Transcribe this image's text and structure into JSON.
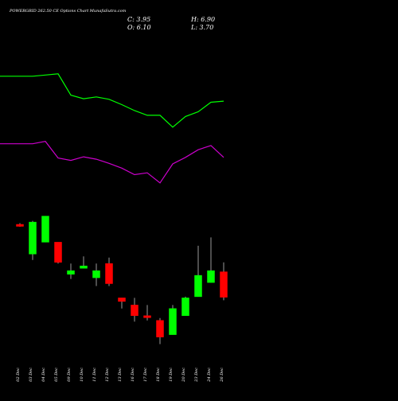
{
  "chart_data": {
    "type": "candlestick",
    "title": "POWERGRID 262.50 CE Options Chart MunafaSutra.com",
    "ohlc": {
      "C": "C: 3.95",
      "O": "O: 6.10",
      "H": "H: 6.90",
      "L": "L: 3.70"
    },
    "dates": [
      "02 Dec",
      "03 Dec",
      "04 Dec",
      "05 Dec",
      "09 Dec",
      "10 Dec",
      "11 Dec",
      "12 Dec",
      "13 Dec",
      "16 Dec",
      "17 Dec",
      "18 Dec",
      "19 Dec",
      "20 Dec",
      "23 Dec",
      "24 Dec",
      "26 Dec"
    ],
    "candles": [
      {
        "o": 10.1,
        "h": 10.2,
        "l": 9.9,
        "c": 10.0
      },
      {
        "o": 7.6,
        "h": 10.4,
        "l": 7.1,
        "c": 10.3
      },
      {
        "o": 8.6,
        "h": 10.8,
        "l": 8.6,
        "c": 10.8
      },
      {
        "o": 8.6,
        "h": 8.6,
        "l": 6.8,
        "c": 6.9
      },
      {
        "o": 5.9,
        "h": 6.8,
        "l": 5.5,
        "c": 6.2
      },
      {
        "o": 6.4,
        "h": 7.4,
        "l": 6.4,
        "c": 6.6
      },
      {
        "o": 5.6,
        "h": 6.8,
        "l": 4.9,
        "c": 6.2
      },
      {
        "o": 6.8,
        "h": 7.3,
        "l": 4.9,
        "c": 5.1
      },
      {
        "o": 3.9,
        "h": 3.9,
        "l": 3.0,
        "c": 3.6
      },
      {
        "o": 3.3,
        "h": 3.9,
        "l": 1.9,
        "c": 2.4
      },
      {
        "o": 2.4,
        "h": 3.3,
        "l": 2.0,
        "c": 2.3
      },
      {
        "o": 2.0,
        "h": 2.2,
        "l": 0.0,
        "c": 0.6
      },
      {
        "o": 0.8,
        "h": 3.3,
        "l": 0.8,
        "c": 3.0
      },
      {
        "o": 2.4,
        "h": 4.0,
        "l": 2.4,
        "c": 3.9
      },
      {
        "o": 4.0,
        "h": 8.3,
        "l": 4.0,
        "c": 5.8
      },
      {
        "o": 5.2,
        "h": 9.0,
        "l": 5.2,
        "c": 6.2
      },
      {
        "o": 6.1,
        "h": 6.9,
        "l": 3.7,
        "c": 3.95
      }
    ],
    "upper_band": [
      22.6,
      22.6,
      22.7,
      22.8,
      21.0,
      20.7,
      20.85,
      20.65,
      20.2,
      19.7,
      19.3,
      19.3,
      18.3,
      19.2,
      19.6,
      20.4,
      20.5
    ],
    "lower_band": [
      16.9,
      16.9,
      17.1,
      15.7,
      15.5,
      15.8,
      15.6,
      15.25,
      14.85,
      14.3,
      14.45,
      13.6,
      15.2,
      15.75,
      16.4,
      16.75,
      15.75
    ],
    "y_range": [
      -0.5,
      25.0
    ],
    "grid": false,
    "colors": {
      "up": "#00ff00",
      "down": "#ff0000",
      "upper_band": "#00ff00",
      "lower_band": "#cc00cc",
      "background": "#000000",
      "text": "#ffffff",
      "wick": "#9a9a9a"
    }
  }
}
